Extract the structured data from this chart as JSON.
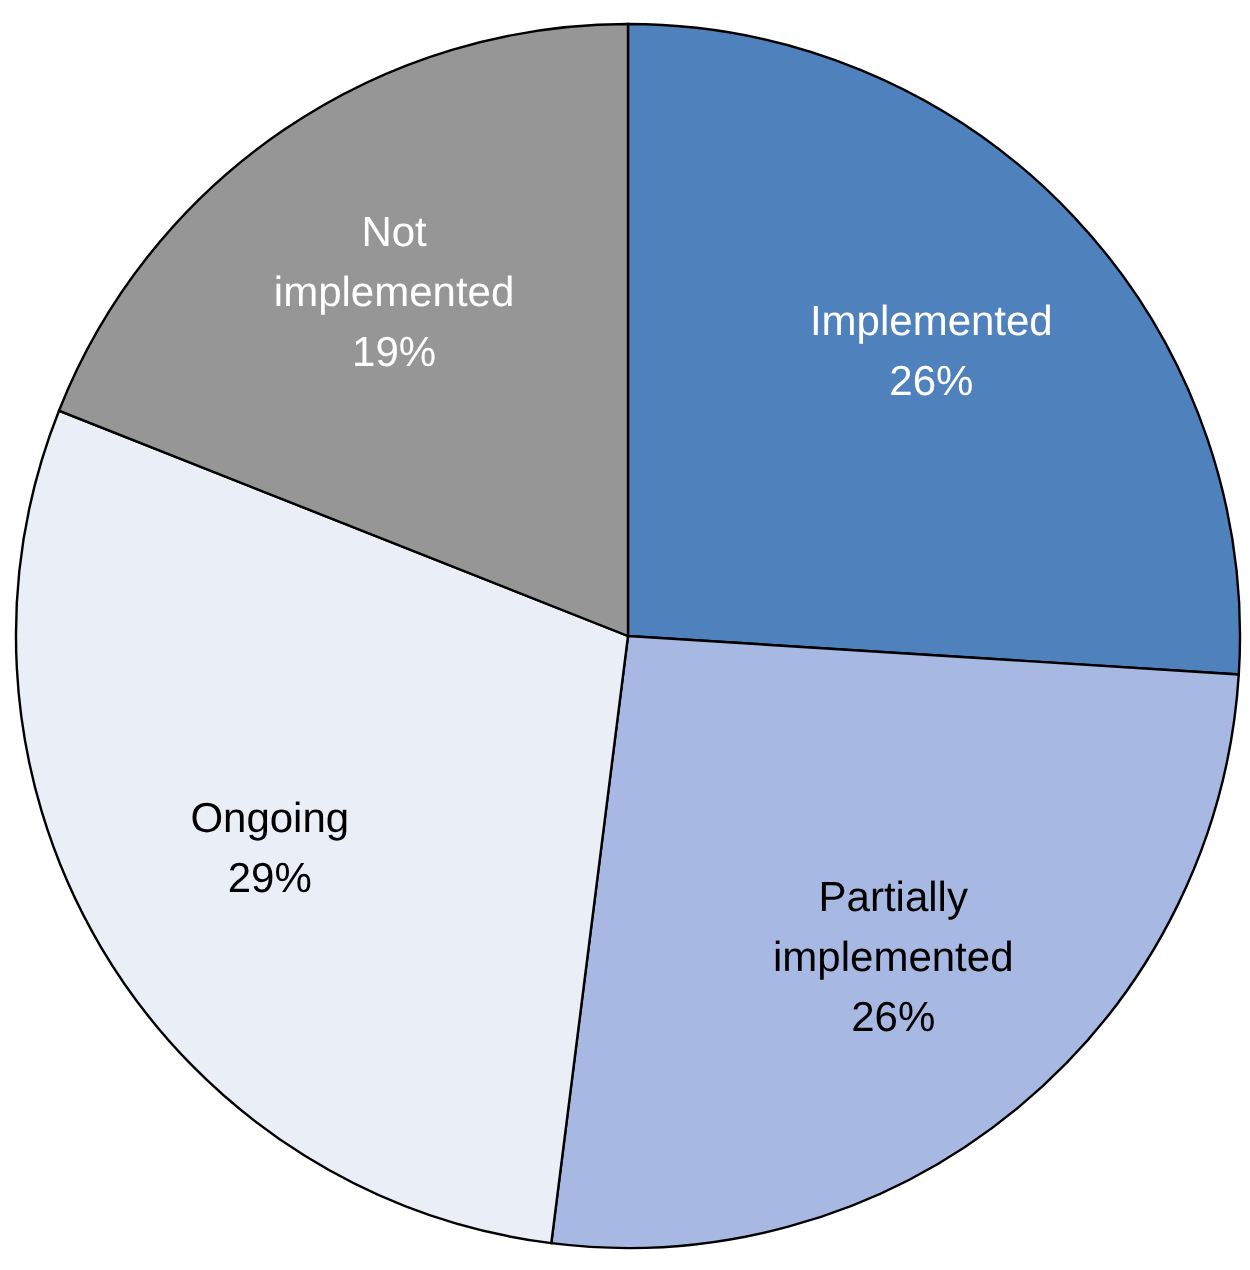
{
  "chart_data": {
    "type": "pie",
    "categories": [
      "Implemented",
      "Partially implemented",
      "Ongoing",
      "Not implemented"
    ],
    "values": [
      26,
      26,
      29,
      19
    ],
    "colors": [
      "#4f81bd",
      "#a7b8e2",
      "#eaeef7",
      "#969696"
    ],
    "value_labels": [
      "26%",
      "26%",
      "29%",
      "19%"
    ]
  }
}
